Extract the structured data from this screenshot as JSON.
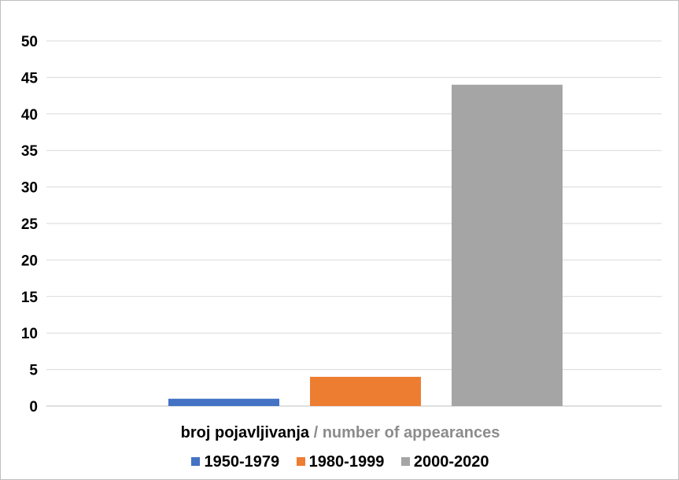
{
  "chart_data": {
    "type": "bar",
    "xlabel": "broj pojavljivanja",
    "xlabel_secondary": "/ number of appearances",
    "ylim": [
      0,
      50
    ],
    "yticks": [
      0,
      5,
      10,
      15,
      20,
      25,
      30,
      35,
      40,
      45,
      50
    ],
    "grid": true,
    "legend_position": "bottom",
    "series": [
      {
        "name": "1950-1979",
        "value": 1,
        "color": "#4472c4"
      },
      {
        "name": "1980-1999",
        "value": 4,
        "color": "#ed7d31"
      },
      {
        "name": "2000-2020",
        "value": 44,
        "color": "#a5a5a5"
      }
    ]
  }
}
